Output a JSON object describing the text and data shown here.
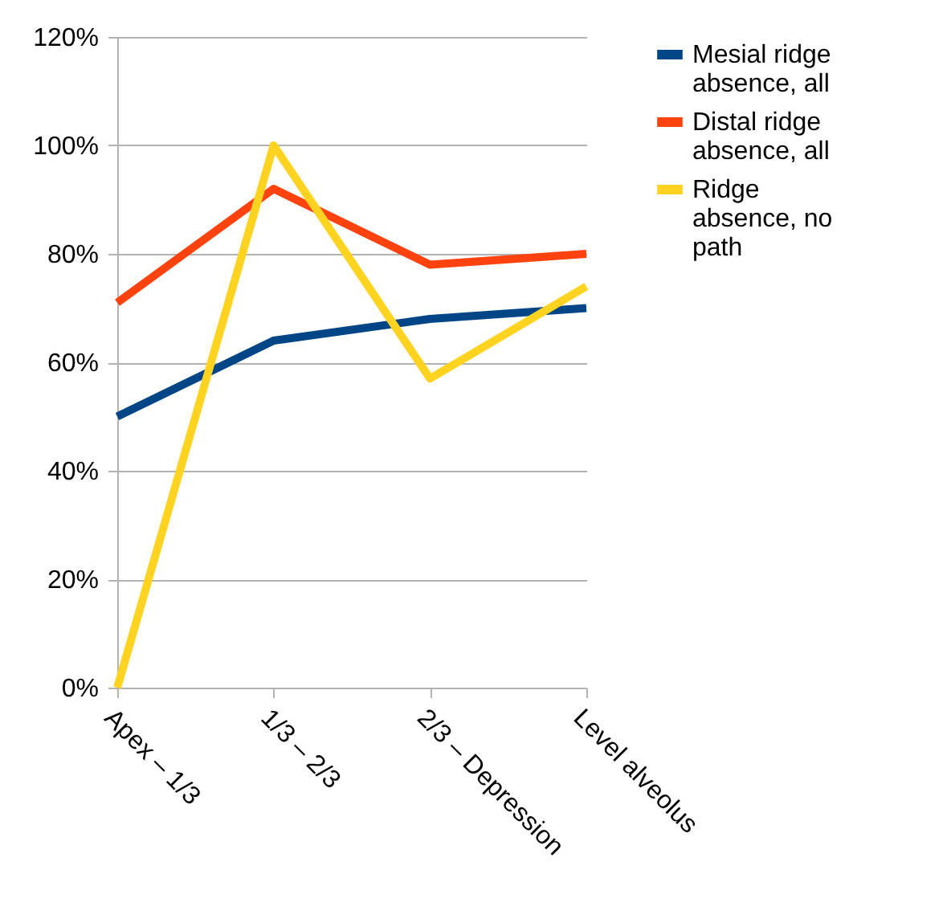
{
  "chart_data": {
    "type": "line",
    "categories": [
      "Apex – 1/3",
      "1/3 – 2/3",
      "2/3 – Depression",
      "Level alveolus"
    ],
    "series": [
      {
        "name": "Mesial ridge absence, all",
        "color": "#004586",
        "values": [
          50,
          64,
          68,
          70
        ]
      },
      {
        "name": "Distal ridge absence, all",
        "color": "#ff420e",
        "values": [
          71,
          92,
          78,
          80
        ]
      },
      {
        "name": "Ridge absence, no path",
        "color": "#ffd320",
        "values": [
          0,
          100,
          57,
          74
        ]
      }
    ],
    "ylim": [
      0,
      120
    ],
    "yticks": [
      {
        "value": 0,
        "label": "0%"
      },
      {
        "value": 20,
        "label": "20%"
      },
      {
        "value": 40,
        "label": "40%"
      },
      {
        "value": 60,
        "label": "60%"
      },
      {
        "value": 80,
        "label": "80%"
      },
      {
        "value": 100,
        "label": "100%"
      },
      {
        "value": 120,
        "label": "120%"
      }
    ],
    "grid": "y",
    "legend": "right",
    "marker": "none",
    "line_style": "solid"
  }
}
